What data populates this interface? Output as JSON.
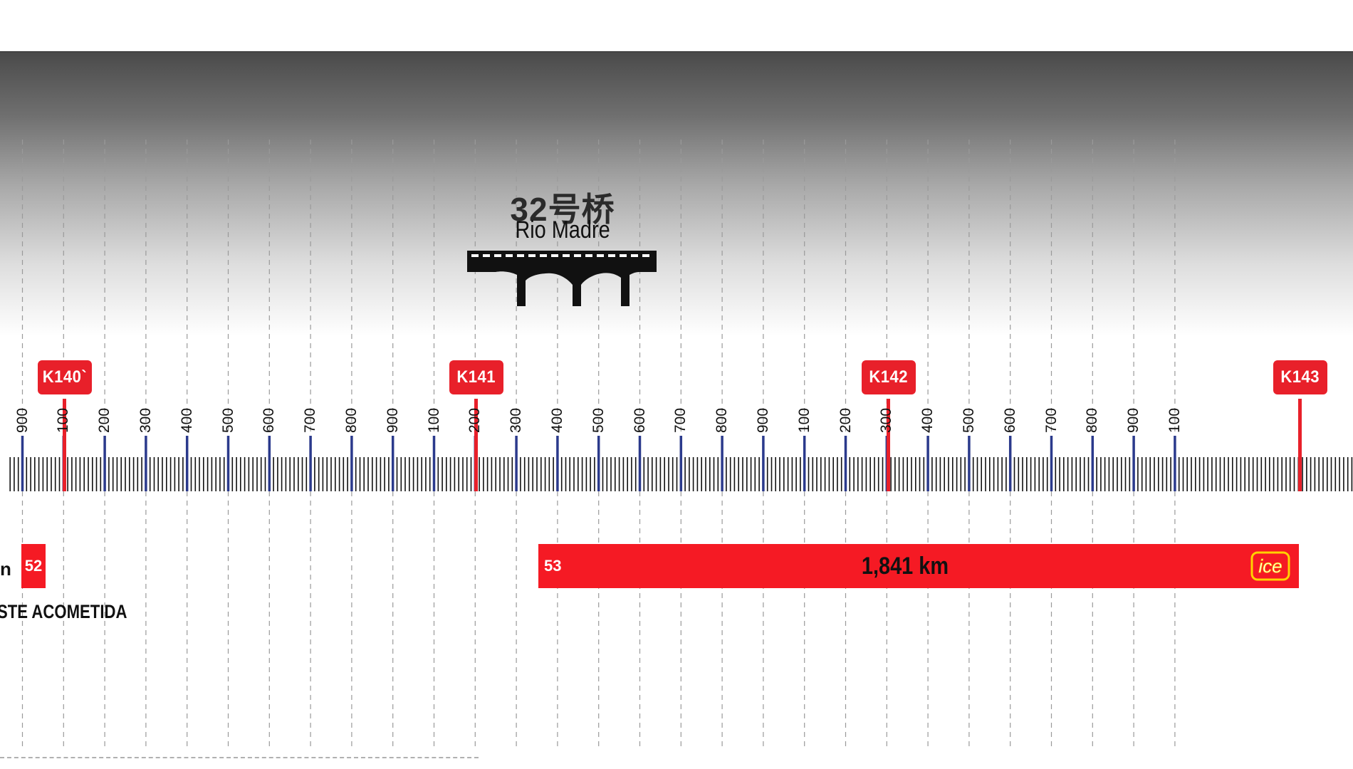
{
  "colors": {
    "marker_red": "#e8202a",
    "bar_red": "#f51a24",
    "hundred_tick_blue": "#2b3a8c",
    "ruler_black": "#111111"
  },
  "bridge": {
    "name": "32号桥",
    "subtitle": "Rio Madre",
    "icon": "bridge-icon"
  },
  "km_markers": [
    {
      "label": "K140`"
    },
    {
      "label": "K141"
    },
    {
      "label": "K142"
    },
    {
      "label": "K143"
    }
  ],
  "ruler": {
    "tick_labels": [
      "900",
      "100",
      "200",
      "300",
      "400",
      "500",
      "600",
      "700",
      "800",
      "900",
      "100",
      "200",
      "300",
      "400",
      "500",
      "600",
      "700",
      "800",
      "900",
      "100",
      "200",
      "300",
      "400",
      "500",
      "600",
      "700",
      "800",
      "900",
      "100"
    ]
  },
  "segments": {
    "left_fragment": "n",
    "left_id": "52",
    "left_caption": "STE ACOMETIDA",
    "main_id": "53",
    "main_length": "1,841 km",
    "main_logo": "ice"
  }
}
